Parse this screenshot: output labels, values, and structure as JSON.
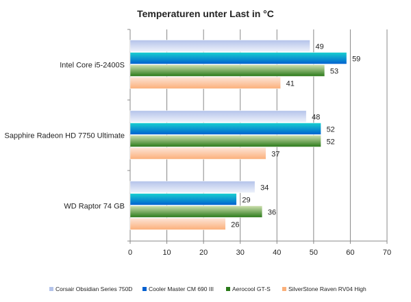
{
  "chart_data": {
    "type": "bar",
    "orientation": "horizontal",
    "title": "Temperaturen unter Last in °C",
    "xlabel": "",
    "ylabel": "",
    "xlim": [
      0,
      70
    ],
    "xticks": [
      "0",
      "10",
      "20",
      "30",
      "40",
      "50",
      "60",
      "70"
    ],
    "grid": true,
    "legend_position": "bottom",
    "categories": [
      "Intel Core i5-2400S",
      "Sapphire Radeon HD 7750 Ultimate",
      "WD Raptor 74 GB"
    ],
    "series": [
      {
        "name": "Corsair Obsidian Series 750D",
        "values": [
          49,
          48,
          34
        ],
        "color": "#b4c3ea",
        "color2": "#eef2fb"
      },
      {
        "name": "Cooler Master CM 690 III",
        "values": [
          59,
          52,
          29
        ],
        "color": "#18d0d0",
        "color2": "#0060d0"
      },
      {
        "name": "Aerocool GT-S",
        "values": [
          53,
          52,
          36
        ],
        "color": "#cfe0b0",
        "color2": "#2a7a1a"
      },
      {
        "name": "SilverStone Raven RV04 High",
        "values": [
          41,
          37,
          26
        ],
        "color": "#fde4d8",
        "color2": "#fbb07a"
      }
    ]
  }
}
